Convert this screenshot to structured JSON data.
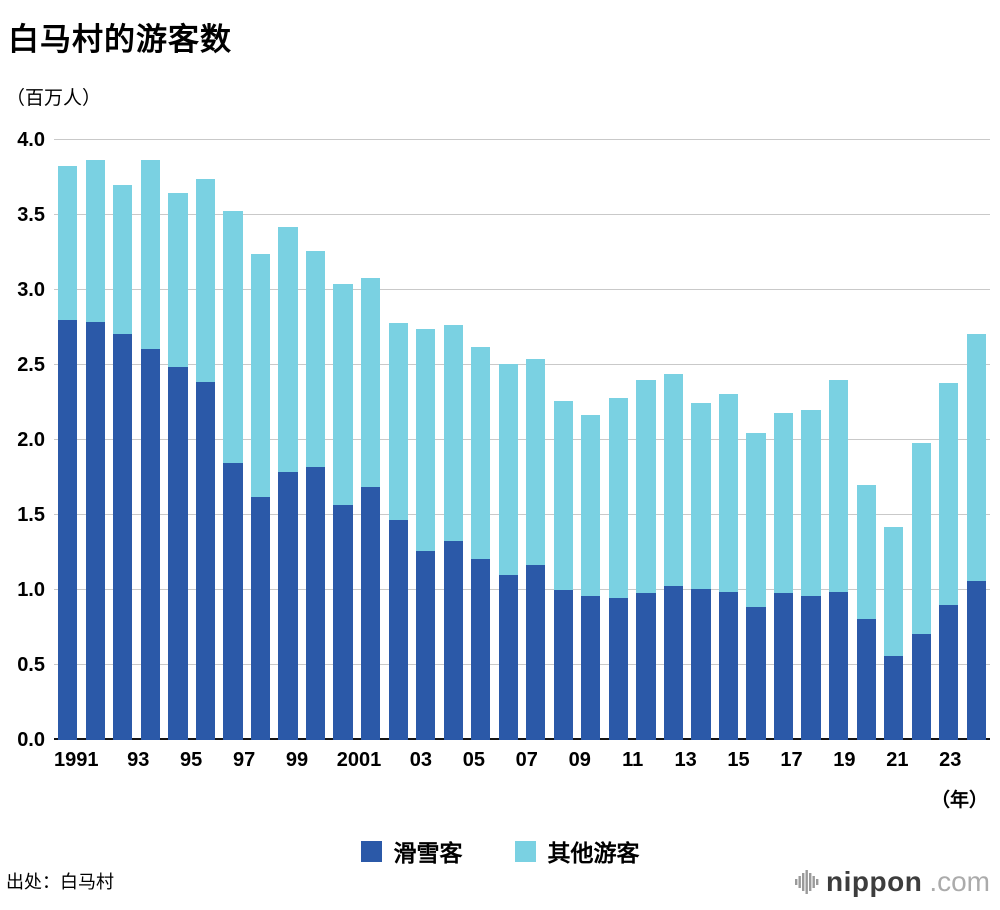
{
  "title": "白马村的游客数",
  "unit_label": "（百万人）",
  "year_suffix": "（年）",
  "source": "出处：白马村",
  "logo": {
    "icon": "soundwave-bars-icon",
    "name": "nippon",
    "suffix": ".com"
  },
  "legend": [
    {
      "id": "skiers",
      "label": "滑雪客",
      "color": "#2b59a8"
    },
    {
      "id": "others",
      "label": "其他游客",
      "color": "#7ad1e2"
    }
  ],
  "chart_data": {
    "type": "bar",
    "stacked": true,
    "title": "白马村的游客数",
    "ylabel": "（百万人）",
    "xlabel": "（年）",
    "ylim": [
      0,
      4.0
    ],
    "yticks": [
      0,
      0.5,
      1.0,
      1.5,
      2.0,
      2.5,
      3.0,
      3.5,
      4.0
    ],
    "grid": true,
    "legend_position": "bottom",
    "x": [
      1991,
      1992,
      1993,
      1994,
      1995,
      1996,
      1997,
      1998,
      1999,
      2000,
      2001,
      2002,
      2003,
      2004,
      2005,
      2006,
      2007,
      2008,
      2009,
      2010,
      2011,
      2012,
      2013,
      2014,
      2015,
      2016,
      2017,
      2018,
      2019,
      2020,
      2021,
      2022,
      2023,
      2024
    ],
    "x_tick_labels": [
      "1991",
      "",
      "93",
      "",
      "95",
      "",
      "97",
      "",
      "99",
      "",
      "2001",
      "",
      "03",
      "",
      "05",
      "",
      "07",
      "",
      "09",
      "",
      "11",
      "",
      "13",
      "",
      "15",
      "",
      "17",
      "",
      "19",
      "",
      "21",
      "",
      "23",
      ""
    ],
    "series": [
      {
        "name": "滑雪客",
        "color": "#2b59a8",
        "values": [
          2.8,
          2.79,
          2.71,
          2.61,
          2.49,
          2.39,
          1.85,
          1.62,
          1.79,
          1.82,
          1.57,
          1.69,
          1.47,
          1.26,
          1.33,
          1.21,
          1.1,
          1.17,
          1.0,
          0.96,
          0.95,
          0.98,
          1.03,
          1.01,
          0.99,
          0.89,
          0.98,
          0.96,
          0.99,
          0.81,
          0.56,
          0.71,
          0.9,
          1.06
        ]
      },
      {
        "name": "其他游客",
        "color": "#7ad1e2",
        "values": [
          1.03,
          1.08,
          0.99,
          1.26,
          1.16,
          1.35,
          1.68,
          1.62,
          1.63,
          1.44,
          1.47,
          1.39,
          1.31,
          1.48,
          1.44,
          1.41,
          1.41,
          1.37,
          1.26,
          1.21,
          1.33,
          1.42,
          1.41,
          1.24,
          1.32,
          1.16,
          1.2,
          1.24,
          1.41,
          0.89,
          0.86,
          1.27,
          1.48,
          1.65
        ]
      }
    ]
  }
}
